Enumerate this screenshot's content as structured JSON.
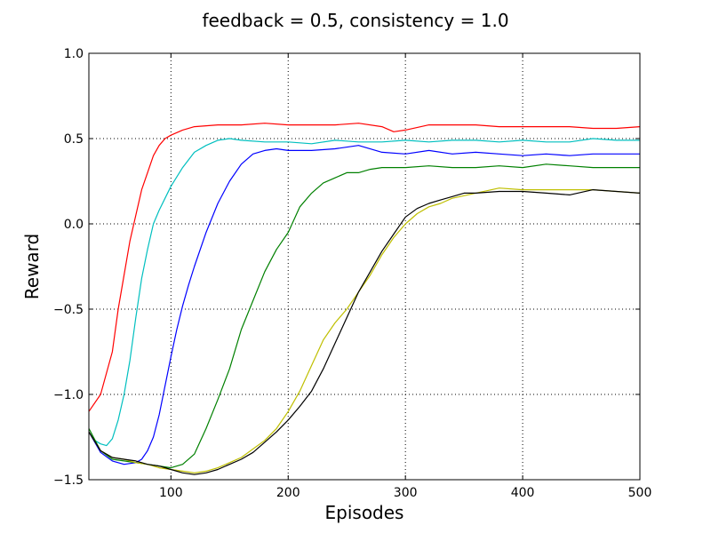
{
  "chart_data": {
    "type": "line",
    "title": "feedback = 0.5, consistency = 1.0",
    "xlabel": "Episodes",
    "ylabel": "Reward",
    "xlim": [
      30,
      500
    ],
    "ylim": [
      -1.5,
      1.0
    ],
    "xticks": [
      100,
      200,
      300,
      400,
      500
    ],
    "yticks": [
      -1.5,
      -1.0,
      -0.5,
      0.0,
      0.5,
      1.0
    ],
    "xtick_labels": [
      "100",
      "200",
      "300",
      "400",
      "500"
    ],
    "ytick_labels": [
      "−1.5",
      "−1.0",
      "−0.5",
      "0.0",
      "0.5",
      "1.0"
    ],
    "grid": true,
    "series": [
      {
        "color": "#ff0000",
        "x": [
          30,
          40,
          50,
          55,
          60,
          65,
          70,
          75,
          80,
          85,
          90,
          95,
          100,
          110,
          120,
          140,
          160,
          180,
          200,
          220,
          240,
          260,
          280,
          290,
          300,
          320,
          340,
          360,
          380,
          400,
          420,
          440,
          460,
          480,
          500
        ],
        "y": [
          -1.1,
          -1.0,
          -0.75,
          -0.5,
          -0.3,
          -0.1,
          0.05,
          0.2,
          0.3,
          0.4,
          0.46,
          0.5,
          0.52,
          0.55,
          0.57,
          0.58,
          0.58,
          0.59,
          0.58,
          0.58,
          0.58,
          0.59,
          0.57,
          0.54,
          0.55,
          0.58,
          0.58,
          0.58,
          0.57,
          0.57,
          0.57,
          0.57,
          0.56,
          0.56,
          0.57
        ]
      },
      {
        "color": "#00bfbf",
        "x": [
          30,
          35,
          40,
          45,
          50,
          55,
          60,
          65,
          70,
          75,
          80,
          85,
          90,
          95,
          100,
          110,
          120,
          130,
          140,
          150,
          160,
          180,
          200,
          220,
          240,
          260,
          280,
          300,
          320,
          340,
          360,
          380,
          400,
          420,
          440,
          460,
          480,
          500
        ],
        "y": [
          -1.22,
          -1.27,
          -1.29,
          -1.3,
          -1.26,
          -1.15,
          -1.0,
          -0.8,
          -0.55,
          -0.32,
          -0.15,
          0.0,
          0.08,
          0.15,
          0.22,
          0.33,
          0.42,
          0.46,
          0.49,
          0.5,
          0.49,
          0.48,
          0.48,
          0.47,
          0.49,
          0.48,
          0.48,
          0.49,
          0.48,
          0.49,
          0.49,
          0.48,
          0.49,
          0.48,
          0.48,
          0.5,
          0.49,
          0.49
        ]
      },
      {
        "color": "#0000ff",
        "x": [
          30,
          40,
          50,
          60,
          70,
          75,
          80,
          85,
          90,
          95,
          100,
          105,
          110,
          115,
          120,
          130,
          140,
          150,
          160,
          170,
          180,
          190,
          200,
          220,
          240,
          260,
          280,
          300,
          320,
          340,
          360,
          380,
          400,
          420,
          440,
          460,
          480,
          500
        ],
        "y": [
          -1.22,
          -1.34,
          -1.39,
          -1.41,
          -1.4,
          -1.38,
          -1.33,
          -1.25,
          -1.12,
          -0.95,
          -0.78,
          -0.62,
          -0.48,
          -0.36,
          -0.25,
          -0.05,
          0.12,
          0.25,
          0.35,
          0.41,
          0.43,
          0.44,
          0.43,
          0.43,
          0.44,
          0.46,
          0.42,
          0.41,
          0.43,
          0.41,
          0.42,
          0.41,
          0.4,
          0.41,
          0.4,
          0.41,
          0.41,
          0.41
        ]
      },
      {
        "color": "#008000",
        "x": [
          30,
          40,
          50,
          60,
          70,
          80,
          90,
          100,
          110,
          120,
          130,
          140,
          150,
          160,
          170,
          180,
          190,
          200,
          210,
          220,
          230,
          240,
          250,
          260,
          270,
          280,
          300,
          320,
          340,
          360,
          380,
          400,
          420,
          440,
          460,
          480,
          500
        ],
        "y": [
          -1.2,
          -1.33,
          -1.38,
          -1.39,
          -1.4,
          -1.41,
          -1.42,
          -1.43,
          -1.41,
          -1.35,
          -1.2,
          -1.03,
          -0.85,
          -0.62,
          -0.45,
          -0.28,
          -0.15,
          -0.05,
          0.1,
          0.18,
          0.24,
          0.27,
          0.3,
          0.3,
          0.32,
          0.33,
          0.33,
          0.34,
          0.33,
          0.33,
          0.34,
          0.33,
          0.35,
          0.34,
          0.33,
          0.33,
          0.33
        ]
      },
      {
        "color": "#bfbf00",
        "x": [
          30,
          40,
          50,
          60,
          70,
          80,
          90,
          100,
          110,
          120,
          130,
          140,
          150,
          160,
          170,
          180,
          190,
          200,
          210,
          220,
          230,
          240,
          250,
          260,
          270,
          280,
          290,
          300,
          310,
          320,
          330,
          340,
          360,
          380,
          400,
          420,
          440,
          460,
          480,
          500
        ],
        "y": [
          -1.22,
          -1.33,
          -1.37,
          -1.38,
          -1.4,
          -1.41,
          -1.43,
          -1.44,
          -1.45,
          -1.46,
          -1.45,
          -1.43,
          -1.4,
          -1.37,
          -1.32,
          -1.27,
          -1.2,
          -1.1,
          -0.98,
          -0.83,
          -0.68,
          -0.58,
          -0.5,
          -0.4,
          -0.3,
          -0.18,
          -0.08,
          0.0,
          0.06,
          0.1,
          0.12,
          0.15,
          0.18,
          0.21,
          0.2,
          0.2,
          0.2,
          0.2,
          0.19,
          0.18
        ]
      },
      {
        "color": "#000000",
        "x": [
          30,
          40,
          50,
          60,
          70,
          80,
          90,
          100,
          110,
          120,
          130,
          140,
          150,
          160,
          170,
          180,
          190,
          200,
          210,
          220,
          230,
          240,
          250,
          260,
          270,
          280,
          290,
          300,
          310,
          320,
          330,
          340,
          350,
          360,
          380,
          400,
          420,
          440,
          460,
          480,
          500
        ],
        "y": [
          -1.22,
          -1.33,
          -1.37,
          -1.38,
          -1.39,
          -1.41,
          -1.42,
          -1.44,
          -1.46,
          -1.47,
          -1.46,
          -1.44,
          -1.41,
          -1.38,
          -1.34,
          -1.28,
          -1.22,
          -1.15,
          -1.07,
          -0.98,
          -0.85,
          -0.7,
          -0.55,
          -0.4,
          -0.28,
          -0.16,
          -0.06,
          0.04,
          0.09,
          0.12,
          0.14,
          0.16,
          0.18,
          0.18,
          0.19,
          0.19,
          0.18,
          0.17,
          0.2,
          0.19,
          0.18
        ]
      }
    ]
  }
}
